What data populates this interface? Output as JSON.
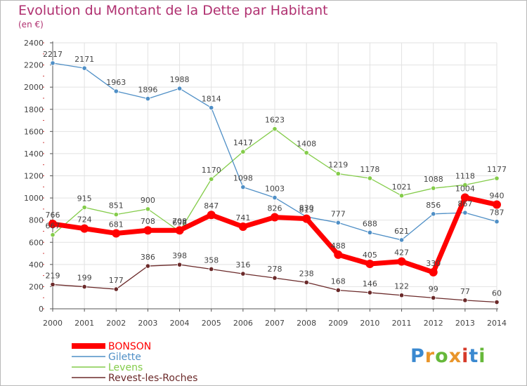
{
  "chart_data": {
    "type": "line",
    "title": "Evolution du Montant de la Dette par Habitant",
    "subtitle": "(en €)",
    "xlabel": "",
    "ylabel": "",
    "x": [
      "2000",
      "2001",
      "2002",
      "2003",
      "2004",
      "2005",
      "2006",
      "2007",
      "2008",
      "2009",
      "2010",
      "2011",
      "2012",
      "2013",
      "2014"
    ],
    "ylim": [
      0,
      2400
    ],
    "yticks": [
      0,
      200,
      400,
      600,
      800,
      1000,
      1200,
      1400,
      1600,
      1800,
      2000,
      2200,
      2400
    ],
    "grid": true,
    "legend": "bottom-left",
    "series": [
      {
        "name": "BONSON",
        "color": "#ff0000",
        "values": [
          766,
          724,
          681,
          708,
          708,
          847,
          741,
          826,
          813,
          488,
          405,
          427,
          330,
          1004,
          940
        ]
      },
      {
        "name": "Gilette",
        "color": "#4f8fc6",
        "values": [
          2217,
          2171,
          1963,
          1896,
          1988,
          1814,
          1098,
          1003,
          830,
          777,
          688,
          621,
          856,
          867,
          787
        ]
      },
      {
        "name": "Levens",
        "color": "#84cc4a",
        "values": [
          667,
          915,
          851,
          900,
          698,
          1170,
          1417,
          1623,
          1408,
          1219,
          1178,
          1021,
          1088,
          1118,
          1177
        ]
      },
      {
        "name": "Revest-les-Roches",
        "color": "#6b2a2a",
        "values": [
          219,
          199,
          177,
          386,
          398,
          358,
          316,
          278,
          238,
          168,
          146,
          122,
          99,
          77,
          60
        ]
      }
    ]
  },
  "brand": {
    "logo_text": "Proxiti",
    "colors": [
      "#3a89d0",
      "#e9952a",
      "#66b83a",
      "#e9952a",
      "#d63a2a",
      "#3a89d0",
      "#66b83a"
    ]
  },
  "colors": {
    "title": "#b03070",
    "axis": "#555555",
    "grid": "#e2e2e2",
    "label": "#444444"
  }
}
